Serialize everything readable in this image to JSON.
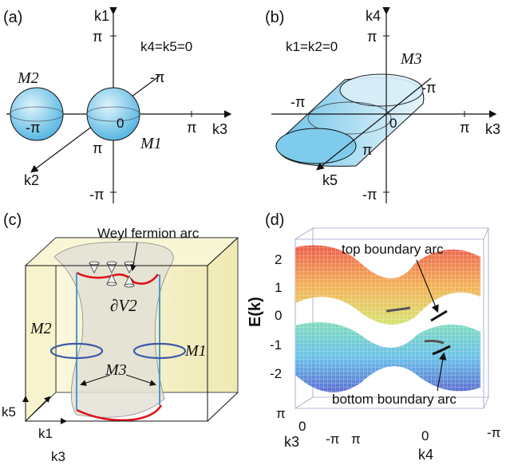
{
  "panels": {
    "a": {
      "label": "(a)",
      "k1": "k1",
      "k3": "k3",
      "k2": "k2",
      "pi": "π",
      "neg_pi": "-π",
      "zero": "0",
      "condition": "k4=k5=0",
      "m1": "M1",
      "m2": "M2"
    },
    "b": {
      "label": "(b)",
      "k4": "k4",
      "k3": "k3",
      "k5": "k5",
      "pi": "π",
      "neg_pi": "-π",
      "zero": "0",
      "condition": "k1=k2=0",
      "m3": "M3"
    },
    "c": {
      "label": "(c)",
      "arc_label": "Weyl fermion arc",
      "v2": "∂V2",
      "m1": "M1",
      "m2": "M2",
      "m3": "M3",
      "k5": "k5",
      "k1": "k1",
      "k3": "k3"
    },
    "d": {
      "label": "(d)",
      "ylabel": "E(k)",
      "yticks": [
        "2",
        "1",
        "0",
        "-1",
        "-2"
      ],
      "top_arc": "top boundary arc",
      "bottom_arc": "bottom boundary arc",
      "k3_label": "k3",
      "k4_label": "k4",
      "k3_ticks": [
        "π",
        "0",
        "-π"
      ],
      "k4_ticks": [
        "π",
        "0",
        "-π"
      ]
    }
  },
  "colors": {
    "sphere_fill": "#8fd0ec",
    "arc_red": "#e0121a",
    "ring_blue": "#3d5aa8",
    "line_blue": "#4a9bd1",
    "box_fill": "#f3efbe"
  }
}
